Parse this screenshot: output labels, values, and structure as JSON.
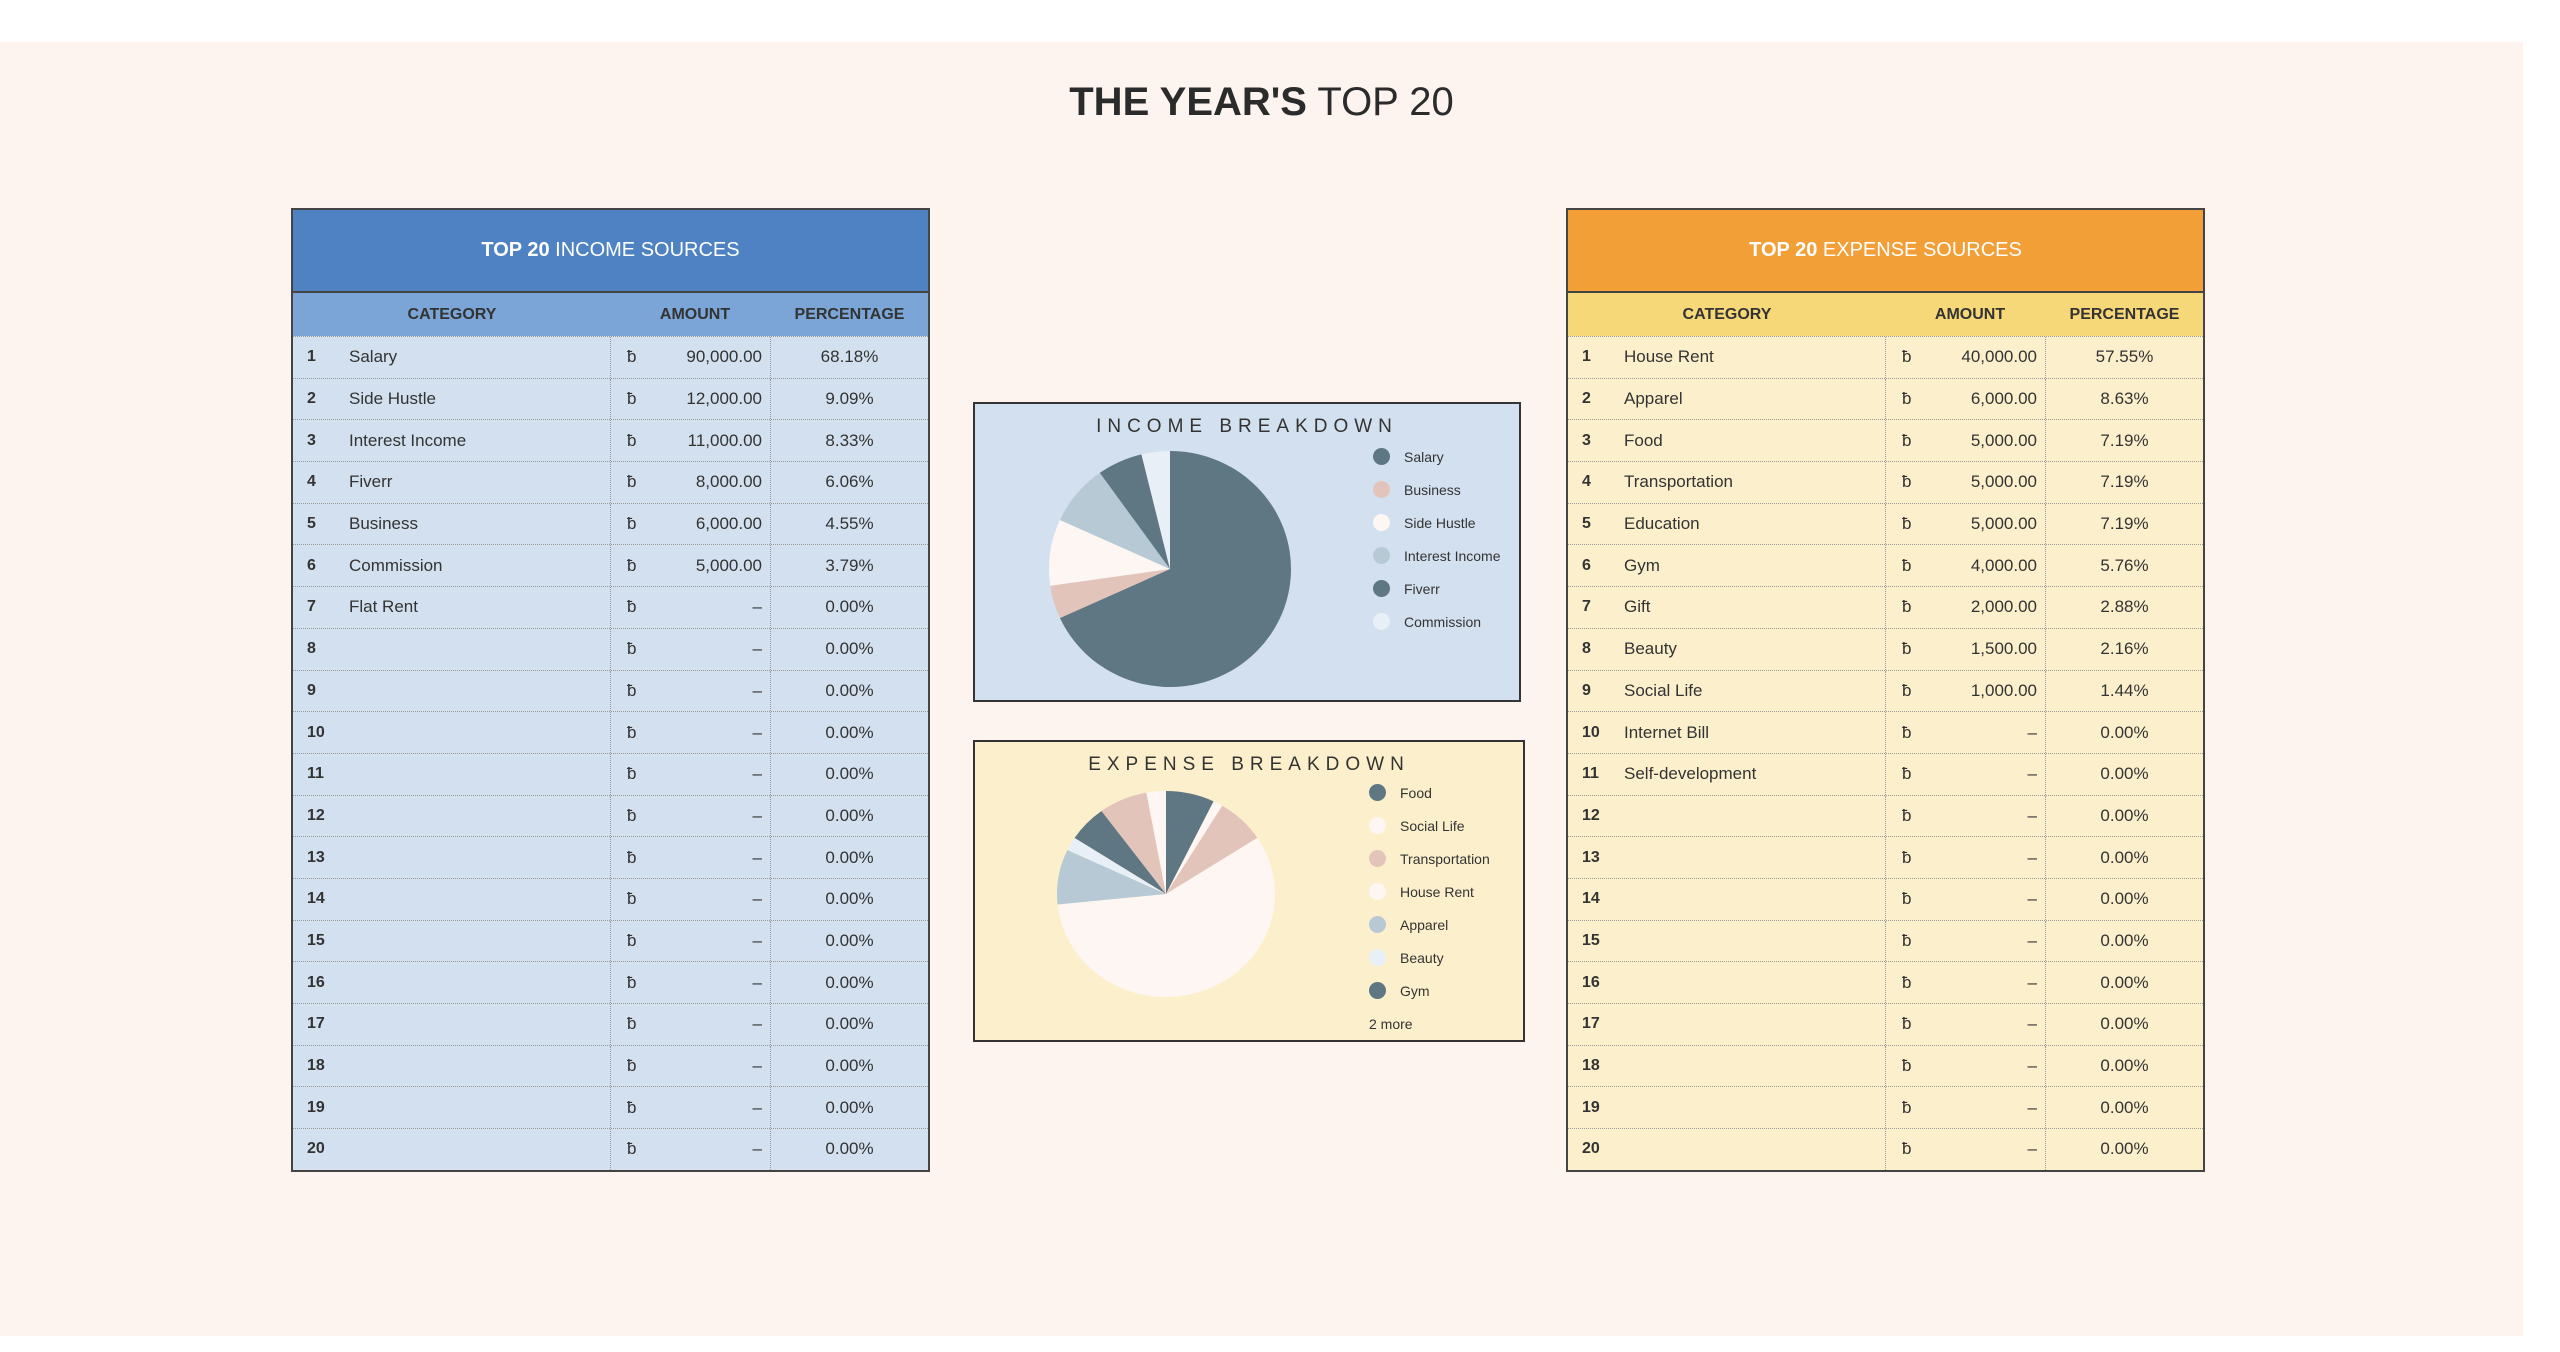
{
  "title": {
    "bold": "THE YEAR'S",
    "rest": "TOP 20"
  },
  "income": {
    "title_bold": "TOP 20",
    "title_rest": "INCOME SOURCES",
    "headers": [
      "CATEGORY",
      "AMOUNT",
      "PERCENTAGE"
    ],
    "currency": "ƀ",
    "rows": [
      [
        "1",
        "Salary",
        "90,000.00",
        "68.18%"
      ],
      [
        "2",
        "Side Hustle",
        "12,000.00",
        "9.09%"
      ],
      [
        "3",
        "Interest Income",
        "11,000.00",
        "8.33%"
      ],
      [
        "4",
        "Fiverr",
        "8,000.00",
        "6.06%"
      ],
      [
        "5",
        "Business",
        "6,000.00",
        "4.55%"
      ],
      [
        "6",
        "Commission",
        "5,000.00",
        "3.79%"
      ],
      [
        "7",
        "Flat Rent",
        "–",
        "0.00%"
      ],
      [
        "8",
        "",
        "–",
        "0.00%"
      ],
      [
        "9",
        "",
        "–",
        "0.00%"
      ],
      [
        "10",
        "",
        "–",
        "0.00%"
      ],
      [
        "11",
        "",
        "–",
        "0.00%"
      ],
      [
        "12",
        "",
        "–",
        "0.00%"
      ],
      [
        "13",
        "",
        "–",
        "0.00%"
      ],
      [
        "14",
        "",
        "–",
        "0.00%"
      ],
      [
        "15",
        "",
        "–",
        "0.00%"
      ],
      [
        "16",
        "",
        "–",
        "0.00%"
      ],
      [
        "17",
        "",
        "–",
        "0.00%"
      ],
      [
        "18",
        "",
        "–",
        "0.00%"
      ],
      [
        "19",
        "",
        "–",
        "0.00%"
      ],
      [
        "20",
        "",
        "–",
        "0.00%"
      ]
    ]
  },
  "expense": {
    "title_bold": "TOP 20",
    "title_rest": "EXPENSE SOURCES",
    "headers": [
      "CATEGORY",
      "AMOUNT",
      "PERCENTAGE"
    ],
    "currency": "ƀ",
    "rows": [
      [
        "1",
        "House Rent",
        "40,000.00",
        "57.55%"
      ],
      [
        "2",
        "Apparel",
        "6,000.00",
        "8.63%"
      ],
      [
        "3",
        "Food",
        "5,000.00",
        "7.19%"
      ],
      [
        "4",
        "Transportation",
        "5,000.00",
        "7.19%"
      ],
      [
        "5",
        "Education",
        "5,000.00",
        "7.19%"
      ],
      [
        "6",
        "Gym",
        "4,000.00",
        "5.76%"
      ],
      [
        "7",
        "Gift",
        "2,000.00",
        "2.88%"
      ],
      [
        "8",
        "Beauty",
        "1,500.00",
        "2.16%"
      ],
      [
        "9",
        "Social Life",
        "1,000.00",
        "1.44%"
      ],
      [
        "10",
        "Internet Bill",
        "–",
        "0.00%"
      ],
      [
        "11",
        "Self-development",
        "–",
        "0.00%"
      ],
      [
        "12",
        "",
        "–",
        "0.00%"
      ],
      [
        "13",
        "",
        "–",
        "0.00%"
      ],
      [
        "14",
        "",
        "–",
        "0.00%"
      ],
      [
        "15",
        "",
        "–",
        "0.00%"
      ],
      [
        "16",
        "",
        "–",
        "0.00%"
      ],
      [
        "17",
        "",
        "–",
        "0.00%"
      ],
      [
        "18",
        "",
        "–",
        "0.00%"
      ],
      [
        "19",
        "",
        "–",
        "0.00%"
      ],
      [
        "20",
        "",
        "–",
        "0.00%"
      ]
    ]
  },
  "chart_data": [
    {
      "type": "pie",
      "title": "INCOME BREAKDOWN",
      "slices": [
        {
          "label": "Salary",
          "value": 90000,
          "color": "#5f7783"
        },
        {
          "label": "Business",
          "value": 6000,
          "color": "#e3c4ba"
        },
        {
          "label": "Side Hustle",
          "value": 12000,
          "color": "#fdf6f2"
        },
        {
          "label": "Interest Income",
          "value": 11000,
          "color": "#b7c9d4"
        },
        {
          "label": "Fiverr",
          "value": 8000,
          "color": "#5f7783"
        },
        {
          "label": "Commission",
          "value": 5000,
          "color": "#e8eff6"
        }
      ],
      "legend": "right"
    },
    {
      "type": "pie",
      "title": "EXPENSE BREAKDOWN",
      "slices": [
        {
          "label": "Food",
          "value": 5000,
          "color": "#5f7783"
        },
        {
          "label": "Social Life",
          "value": 1000,
          "color": "#fdf6f2"
        },
        {
          "label": "Transportation",
          "value": 5000,
          "color": "#e3c4ba"
        },
        {
          "label": "House Rent",
          "value": 40000,
          "color": "#fdf6f2"
        },
        {
          "label": "Apparel",
          "value": 6000,
          "color": "#b7c9d4"
        },
        {
          "label": "Beauty",
          "value": 1500,
          "color": "#e8eff6"
        },
        {
          "label": "Gym",
          "value": 4000,
          "color": "#5f7783"
        },
        {
          "label": "Education",
          "value": 5000,
          "color": "#e3c4ba"
        },
        {
          "label": "Gift",
          "value": 2000,
          "color": "#fdf6f2"
        }
      ],
      "legend_visible": 7,
      "legend_more": "2 more",
      "legend": "right"
    }
  ]
}
